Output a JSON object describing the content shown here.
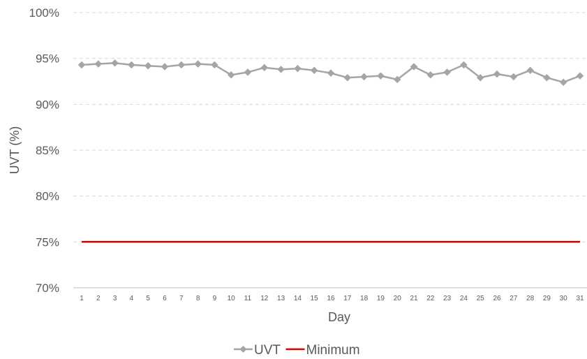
{
  "chart_data": {
    "type": "line",
    "title": "",
    "xlabel": "Day",
    "ylabel": "UVT (%)",
    "x": [
      1,
      2,
      3,
      4,
      5,
      6,
      7,
      8,
      9,
      10,
      11,
      12,
      13,
      14,
      15,
      16,
      17,
      18,
      19,
      20,
      21,
      22,
      23,
      24,
      25,
      26,
      27,
      28,
      29,
      30,
      31
    ],
    "ylim": [
      70,
      100
    ],
    "y_ticks": [
      70,
      75,
      80,
      85,
      90,
      95,
      100
    ],
    "y_tick_labels": [
      "70%",
      "75%",
      "80%",
      "85%",
      "90%",
      "95%",
      "100%"
    ],
    "grid": true,
    "legend_position": "bottom",
    "series": [
      {
        "name": "UVT",
        "color": "#a5a5a5",
        "marker": "diamond",
        "values": [
          94.3,
          94.4,
          94.5,
          94.3,
          94.2,
          94.1,
          94.3,
          94.4,
          94.3,
          93.2,
          93.5,
          94.0,
          93.8,
          93.9,
          93.7,
          93.4,
          92.9,
          93.0,
          93.1,
          92.7,
          94.1,
          93.2,
          93.5,
          94.3,
          92.9,
          93.3,
          93.0,
          93.7,
          92.9,
          92.4,
          93.1
        ]
      },
      {
        "name": "Minimum",
        "color": "#e00000",
        "marker": "none",
        "values": [
          75,
          75,
          75,
          75,
          75,
          75,
          75,
          75,
          75,
          75,
          75,
          75,
          75,
          75,
          75,
          75,
          75,
          75,
          75,
          75,
          75,
          75,
          75,
          75,
          75,
          75,
          75,
          75,
          75,
          75,
          75
        ]
      }
    ]
  }
}
